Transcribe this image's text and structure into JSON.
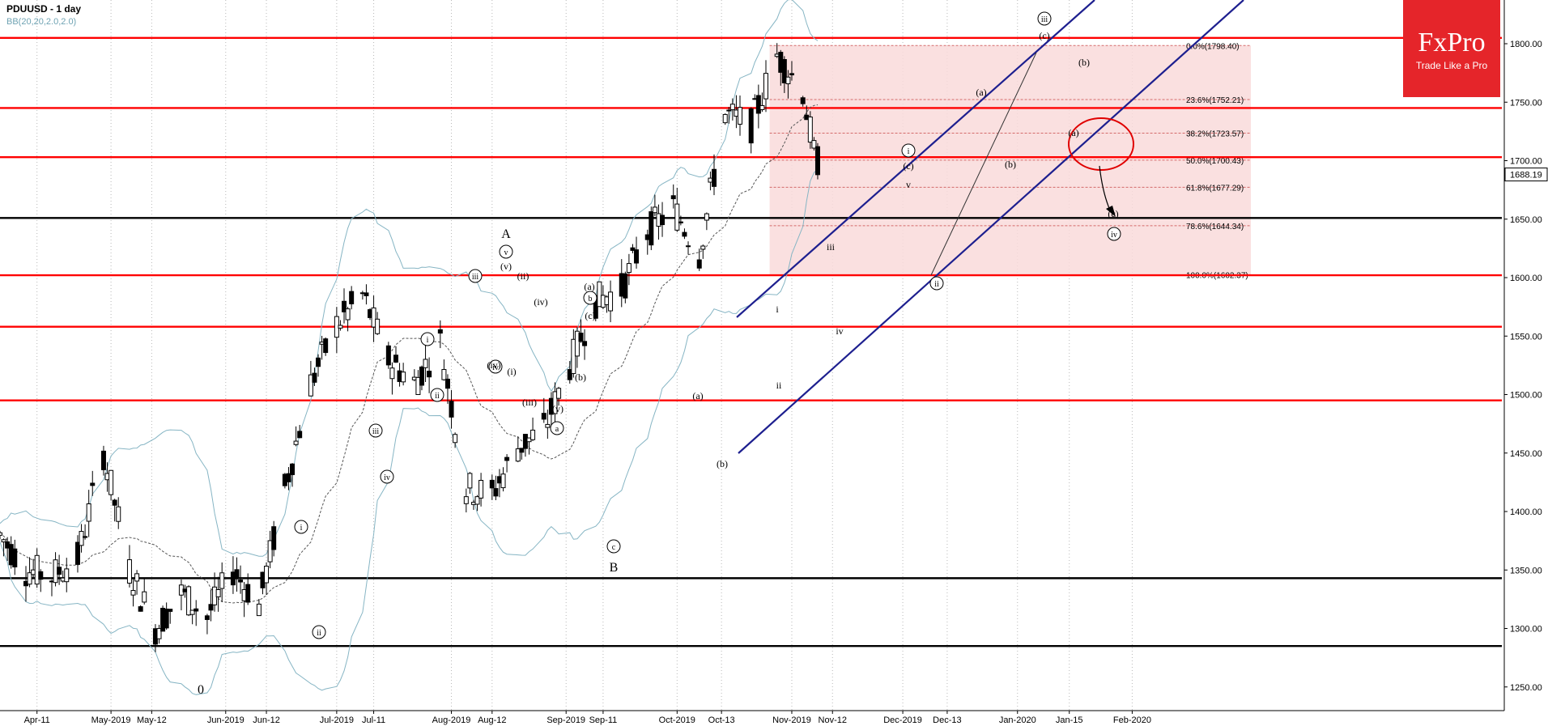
{
  "header": {
    "title": "PDUUSD - 1 day",
    "indicator": "BB(20,20,2.0,2.0)"
  },
  "logo": {
    "brand": "FxPro",
    "tagline": "Trade Like a Pro"
  },
  "colors": {
    "resistance_line": "#ff0000",
    "support_line": "#000000",
    "channel": "#1d1f8f",
    "bollinger": "#86b5c4",
    "fib_zone": "#f9dadb",
    "brand": "#e5252a"
  },
  "chart_data": {
    "type": "candlestick",
    "instrument": "PDUUSD",
    "timeframe": "1 day",
    "ylim": [
      1230,
      1830
    ],
    "price_axis_ticks": [
      1250,
      1300,
      1350,
      1400,
      1450,
      1500,
      1550,
      1600,
      1650,
      1700,
      1750,
      1800
    ],
    "date_axis_ticks": [
      "Apr-11",
      "May-2019",
      "May-12",
      "Jun-2019",
      "Jun-12",
      "Jul-2019",
      "Jul-11",
      "Aug-2019",
      "Aug-12",
      "Sep-2019",
      "Sep-11",
      "Oct-2019",
      "Oct-13",
      "Nov-2019",
      "Nov-12",
      "Dec-2019",
      "Dec-13",
      "Jan-2020",
      "Jan-15",
      "Feb-2020"
    ],
    "current_price": "1688.19",
    "horizontal_levels_red": [
      1805,
      1745,
      1703,
      1602,
      1558,
      1495
    ],
    "horizontal_levels_black": [
      1651,
      1343,
      1285
    ],
    "fibonacci": [
      {
        "label": "0.0%(1798.40)",
        "value": 1798.4
      },
      {
        "label": "23.6%(1752.21)",
        "value": 1752.21
      },
      {
        "label": "38.2%(1723.57)",
        "value": 1723.57
      },
      {
        "label": "50.0%(1700.43)",
        "value": 1700.43
      },
      {
        "label": "61.8%(1677.29)",
        "value": 1677.29
      },
      {
        "label": "78.6%(1644.34)",
        "value": 1644.34
      },
      {
        "label": "100.0%(1602.37)",
        "value": 1602.37
      }
    ],
    "wave_labels": [
      "A",
      "B",
      "0",
      "i",
      "ii",
      "iii",
      "iv",
      "v",
      "(i)",
      "(ii)",
      "(iii)",
      "(iv)",
      "(v)",
      "(a)",
      "(b)",
      "(c)",
      "a",
      "b",
      "c"
    ],
    "price_path": [
      {
        "date": "2019-04-01",
        "close": 1380
      },
      {
        "date": "2019-04-08",
        "close": 1350
      },
      {
        "date": "2019-04-15",
        "close": 1345
      },
      {
        "date": "2019-04-22",
        "close": 1360
      },
      {
        "date": "2019-04-29",
        "close": 1450
      },
      {
        "date": "2019-05-06",
        "close": 1350
      },
      {
        "date": "2019-05-13",
        "close": 1300
      },
      {
        "date": "2019-05-20",
        "close": 1330
      },
      {
        "date": "2019-05-27",
        "close": 1310
      },
      {
        "date": "2019-06-03",
        "close": 1350
      },
      {
        "date": "2019-06-10",
        "close": 1320
      },
      {
        "date": "2019-06-17",
        "close": 1420
      },
      {
        "date": "2019-06-24",
        "close": 1510
      },
      {
        "date": "2019-07-01",
        "close": 1560
      },
      {
        "date": "2019-07-08",
        "close": 1585
      },
      {
        "date": "2019-07-15",
        "close": 1530
      },
      {
        "date": "2019-07-22",
        "close": 1510
      },
      {
        "date": "2019-07-29",
        "close": 1545
      },
      {
        "date": "2019-08-05",
        "close": 1420
      },
      {
        "date": "2019-08-12",
        "close": 1415
      },
      {
        "date": "2019-08-19",
        "close": 1455
      },
      {
        "date": "2019-08-26",
        "close": 1470
      },
      {
        "date": "2019-09-02",
        "close": 1525
      },
      {
        "date": "2019-09-09",
        "close": 1580
      },
      {
        "date": "2019-09-16",
        "close": 1590
      },
      {
        "date": "2019-09-23",
        "close": 1640
      },
      {
        "date": "2019-09-30",
        "close": 1660
      },
      {
        "date": "2019-10-07",
        "close": 1620
      },
      {
        "date": "2019-10-14",
        "close": 1740
      },
      {
        "date": "2019-10-21",
        "close": 1730
      },
      {
        "date": "2019-10-28",
        "close": 1790
      },
      {
        "date": "2019-11-04",
        "close": 1760
      },
      {
        "date": "2019-11-08",
        "close": 1688
      }
    ]
  }
}
